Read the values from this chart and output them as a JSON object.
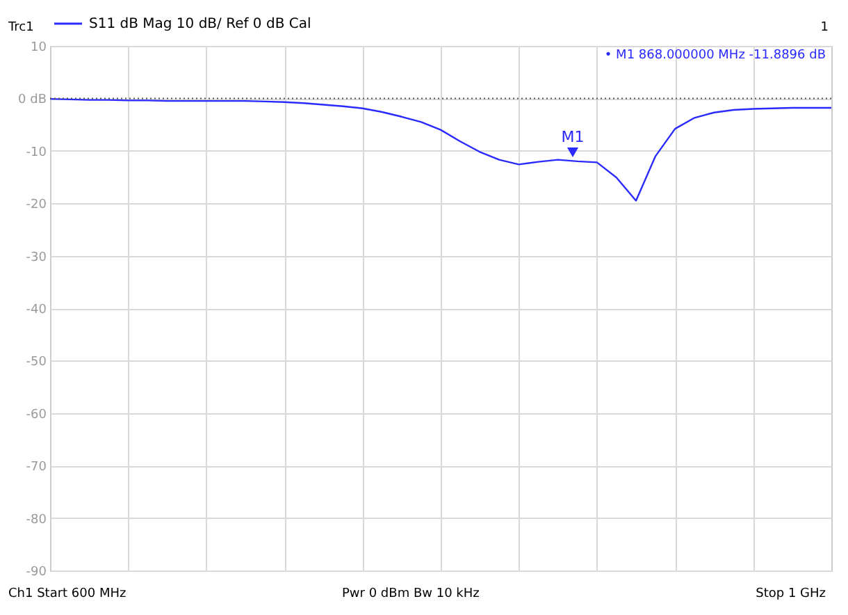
{
  "chart_data": {
    "type": "line",
    "categories": [
      null,
      null,
      null,
      null,
      null,
      null,
      null,
      null,
      null,
      null,
      null,
      null,
      null,
      null,
      null,
      null,
      null,
      null,
      null,
      null,
      null,
      null,
      null,
      null,
      null,
      null,
      null,
      null,
      null,
      null,
      null,
      null,
      null,
      null,
      null,
      null,
      null,
      null,
      null,
      null,
      null
    ],
    "series": [
      {
        "name": "S11  dB Mag  10 dB/ Ref 0 dB  Cal",
        "color": "#2a2aff",
        "values": [
          -0.1,
          -0.2,
          -0.3,
          -0.3,
          -0.4,
          -0.4,
          -0.5,
          -0.5,
          -0.5,
          -0.5,
          -0.5,
          -0.6,
          -0.7,
          -0.9,
          -1.2,
          -1.5,
          -1.9,
          -2.6,
          -3.5,
          -4.5,
          -6.0,
          -8.2,
          -10.2,
          -11.7,
          -12.6,
          -12.1,
          -11.7,
          -12.0,
          -12.2,
          -15.1,
          -19.5,
          -11.0,
          -5.8,
          -3.7,
          -2.7,
          -2.2,
          -2.0,
          -1.9,
          -1.8,
          -1.8,
          -1.8
        ]
      }
    ],
    "ylim": [
      -90,
      10
    ],
    "yticks": [
      10,
      {
        "value": 0,
        "label": "0 dB"
      },
      -10,
      -20,
      -30,
      -40,
      -50,
      -60,
      -70,
      -80,
      -90
    ],
    "tick_labels": "y",
    "grid": true,
    "legend": "top left",
    "ref_lines": [
      {
        "axis": "y",
        "value": 0,
        "color": "#555555",
        "line_style": "dotted"
      }
    ],
    "annotations": [
      "Trc1",
      "1",
      "• M1  868.000000 MHz  -11.8896 dB",
      "Ch1  Start 600 MHz",
      "Pwr  0 dBm  Bw  10 kHz",
      "Stop  1 GHz",
      "M1"
    ]
  }
}
